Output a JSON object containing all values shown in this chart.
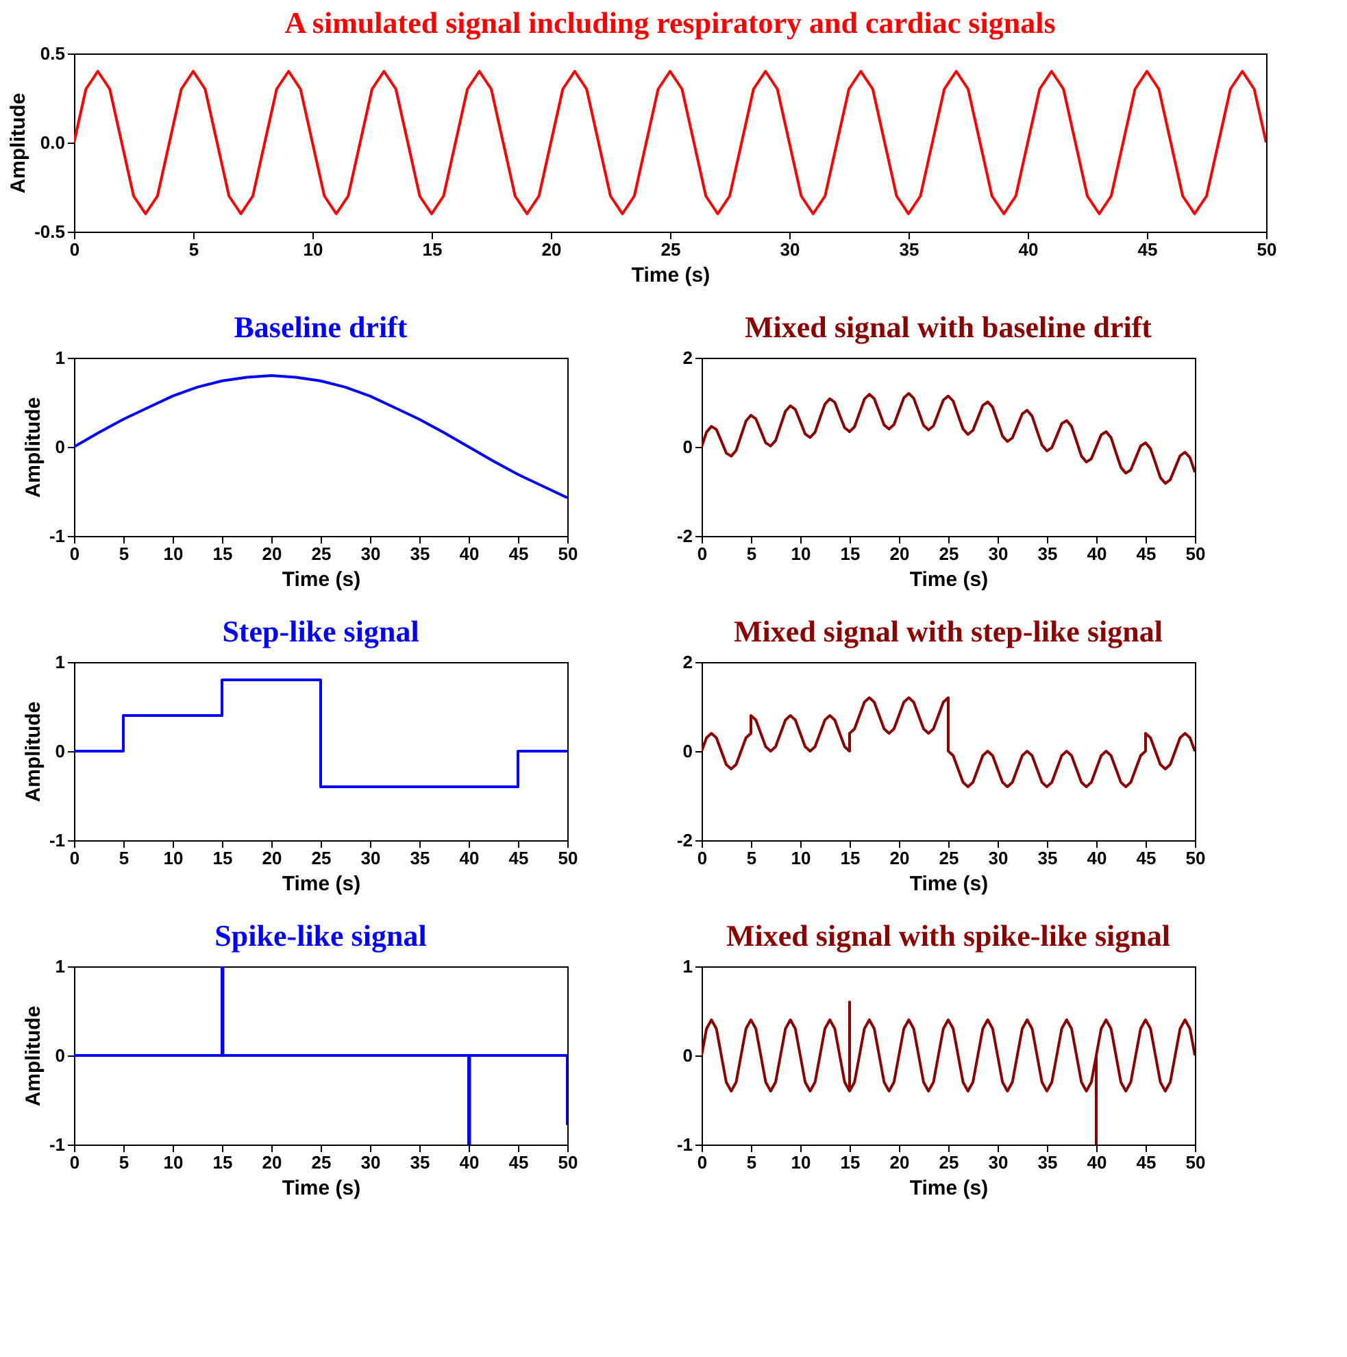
{
  "chart_data": [
    {
      "type": "line",
      "title": "A simulated signal including respiratory and cardiac signals",
      "xlabel": "Time (s)",
      "ylabel": "Amplitude",
      "xlim": [
        0,
        50
      ],
      "ylim": [
        -0.5,
        0.5
      ],
      "xticks": [
        0,
        5,
        10,
        15,
        20,
        25,
        30,
        35,
        40,
        45,
        50
      ],
      "yticks": [
        -0.5,
        {
          "value": 0,
          "label": "0.0"
        },
        0.5
      ],
      "x": [
        0,
        0.5,
        1,
        1.5,
        2,
        2.5,
        3,
        3.5,
        4,
        4.5,
        5,
        5.5,
        6,
        6.5,
        7,
        7.5,
        8,
        8.5,
        9,
        9.5,
        10,
        10.5,
        11,
        11.5,
        12,
        12.5,
        13,
        13.5,
        14,
        14.5,
        15,
        15.5,
        16,
        16.5,
        17,
        17.5,
        18,
        18.5,
        19,
        19.5,
        20,
        20.5,
        21,
        21.5,
        22,
        22.5,
        23,
        23.5,
        24,
        24.5,
        25,
        25.5,
        26,
        26.5,
        27,
        27.5,
        28,
        28.5,
        29,
        29.5,
        30,
        30.5,
        31,
        31.5,
        32,
        32.5,
        33,
        33.5,
        34,
        34.5,
        35,
        35.5,
        36,
        36.5,
        37,
        37.5,
        38,
        38.5,
        39,
        39.5,
        40,
        40.5,
        41,
        41.5,
        42,
        42.5,
        43,
        43.5,
        44,
        44.5,
        45,
        45.5,
        46,
        46.5,
        47,
        47.5,
        48,
        48.5,
        49,
        49.5,
        50
      ],
      "series": [
        {
          "color": "#ff0000",
          "values": [
            0,
            0.3,
            0.4,
            0.3,
            0,
            -0.3,
            -0.4,
            -0.3,
            0,
            0.3,
            0.4,
            0.3,
            0,
            -0.3,
            -0.4,
            -0.3,
            0,
            0.3,
            0.4,
            0.3,
            0,
            -0.3,
            -0.4,
            -0.3,
            0,
            0.3,
            0.4,
            0.3,
            0,
            -0.3,
            -0.4,
            -0.3,
            0,
            0.3,
            0.4,
            0.3,
            0,
            -0.3,
            -0.4,
            -0.3,
            0,
            0.3,
            0.4,
            0.3,
            0,
            -0.3,
            -0.4,
            -0.3,
            0,
            0.3,
            0.4,
            0.3,
            0,
            -0.3,
            -0.4,
            -0.3,
            0,
            0.3,
            0.4,
            0.3,
            0,
            -0.3,
            -0.4,
            -0.3,
            0,
            0.3,
            0.4,
            0.3,
            0,
            -0.3,
            -0.4,
            -0.3,
            0,
            0.3,
            0.4,
            0.3,
            0,
            -0.3,
            -0.4,
            -0.3,
            0,
            0.3,
            0.4,
            0.3,
            0,
            -0.3,
            -0.4,
            -0.3,
            0,
            0.3,
            0.4,
            0.3,
            0,
            -0.3,
            -0.4,
            -0.3,
            0,
            0.3,
            0.4,
            0.3,
            0
          ]
        }
      ]
    },
    {
      "type": "line",
      "title": "Baseline drift",
      "xlabel": "Time (s)",
      "ylabel": "Amplitude",
      "xlim": [
        0,
        50
      ],
      "ylim": [
        -1,
        1
      ],
      "xticks": [
        0,
        5,
        10,
        15,
        20,
        25,
        30,
        35,
        40,
        45,
        50
      ],
      "yticks": [
        -1,
        0,
        1
      ],
      "x": [
        0,
        2.5,
        5,
        7.5,
        10,
        12.5,
        15,
        17.5,
        20,
        22.5,
        25,
        27.5,
        30,
        32.5,
        35,
        37.5,
        40,
        42.5,
        45,
        47.5,
        50
      ],
      "series": [
        {
          "color": "#0000ff",
          "values": [
            0,
            0.16,
            0.31,
            0.44,
            0.57,
            0.67,
            0.74,
            0.78,
            0.8,
            0.78,
            0.74,
            0.67,
            0.57,
            0.44,
            0.31,
            0.16,
            0,
            -0.16,
            -0.31,
            -0.44,
            -0.57
          ]
        }
      ]
    },
    {
      "type": "line",
      "title": "Mixed signal with baseline drift",
      "xlabel": "Time (s)",
      "xlim": [
        0,
        50
      ],
      "ylim": [
        -2,
        2
      ],
      "xticks": [
        0,
        5,
        10,
        15,
        20,
        25,
        30,
        35,
        40,
        45,
        50
      ],
      "yticks": [
        -2,
        0,
        2
      ],
      "x": [
        0,
        0.5,
        1,
        1.5,
        2,
        2.5,
        3,
        3.5,
        4,
        4.5,
        5,
        5.5,
        6,
        6.5,
        7,
        7.5,
        8,
        8.5,
        9,
        9.5,
        10,
        10.5,
        11,
        11.5,
        12,
        12.5,
        13,
        13.5,
        14,
        14.5,
        15,
        15.5,
        16,
        16.5,
        17,
        17.5,
        18,
        18.5,
        19,
        19.5,
        20,
        20.5,
        21,
        21.5,
        22,
        22.5,
        23,
        23.5,
        24,
        24.5,
        25,
        25.5,
        26,
        26.5,
        27,
        27.5,
        28,
        28.5,
        29,
        29.5,
        30,
        30.5,
        31,
        31.5,
        32,
        32.5,
        33,
        33.5,
        34,
        34.5,
        35,
        35.5,
        36,
        36.5,
        37,
        37.5,
        38,
        38.5,
        39,
        39.5,
        40,
        40.5,
        41,
        41.5,
        42,
        42.5,
        43,
        43.5,
        44,
        44.5,
        45,
        45.5,
        46,
        46.5,
        47,
        47.5,
        48,
        48.5,
        49,
        49.5,
        50
      ],
      "series": [
        {
          "color": "#8b0000",
          "values": [
            0,
            0.33,
            0.46,
            0.39,
            0.13,
            -0.14,
            -0.21,
            -0.08,
            0.25,
            0.58,
            0.71,
            0.63,
            0.36,
            0.09,
            0.02,
            0.14,
            0.47,
            0.8,
            0.92,
            0.84,
            0.57,
            0.29,
            0.21,
            0.33,
            0.65,
            0.96,
            1.08,
            1.0,
            0.71,
            0.43,
            0.34,
            0.45,
            0.76,
            1.07,
            1.18,
            1.08,
            0.79,
            0.49,
            0.4,
            0.5,
            0.8,
            1.1,
            1.2,
            1.09,
            0.79,
            0.48,
            0.38,
            0.47,
            0.76,
            1.05,
            1.14,
            1.03,
            0.71,
            0.4,
            0.28,
            0.37,
            0.65,
            0.93,
            1.01,
            0.89,
            0.57,
            0.24,
            0.12,
            0.2,
            0.47,
            0.74,
            0.82,
            0.69,
            0.36,
            0.04,
            -0.09,
            -0.02,
            0.25,
            0.52,
            0.59,
            0.46,
            0.13,
            -0.21,
            -0.34,
            -0.27,
            0,
            0.27,
            0.34,
            0.21,
            -0.13,
            -0.46,
            -0.59,
            -0.52,
            -0.25,
            0.02,
            0.09,
            -0.04,
            -0.36,
            -0.69,
            -0.82,
            -0.74,
            -0.47,
            -0.2,
            -0.12,
            -0.24,
            -0.57
          ]
        }
      ]
    },
    {
      "type": "line",
      "title": "Step-like signal",
      "xlabel": "Time (s)",
      "ylabel": "Amplitude",
      "xlim": [
        0,
        50
      ],
      "ylim": [
        -1,
        1
      ],
      "xticks": [
        0,
        5,
        10,
        15,
        20,
        25,
        30,
        35,
        40,
        45,
        50
      ],
      "yticks": [
        -1,
        0,
        1
      ],
      "x": [
        0,
        5,
        5,
        15,
        15,
        25,
        25,
        45,
        45,
        50
      ],
      "series": [
        {
          "color": "#0000ff",
          "values": [
            0,
            0,
            0.4,
            0.4,
            0.8,
            0.8,
            -0.4,
            -0.4,
            0,
            0
          ]
        }
      ]
    },
    {
      "type": "line",
      "title": "Mixed signal with step-like signal",
      "xlabel": "Time (s)",
      "xlim": [
        0,
        50
      ],
      "ylim": [
        -2,
        2
      ],
      "xticks": [
        0,
        5,
        10,
        15,
        20,
        25,
        30,
        35,
        40,
        45,
        50
      ],
      "yticks": [
        -2,
        0,
        2
      ],
      "x": [
        0,
        0.5,
        1,
        1.5,
        2,
        2.5,
        3,
        3.5,
        4,
        4.5,
        5,
        5,
        5.5,
        6,
        6.5,
        7,
        7.5,
        8,
        8.5,
        9,
        9.5,
        10,
        10.5,
        11,
        11.5,
        12,
        12.5,
        13,
        13.5,
        14,
        14.5,
        15,
        15,
        15.5,
        16,
        16.5,
        17,
        17.5,
        18,
        18.5,
        19,
        19.5,
        20,
        20.5,
        21,
        21.5,
        22,
        22.5,
        23,
        23.5,
        24,
        24.5,
        25,
        25,
        25.5,
        26,
        26.5,
        27,
        27.5,
        28,
        28.5,
        29,
        29.5,
        30,
        30.5,
        31,
        31.5,
        32,
        32.5,
        33,
        33.5,
        34,
        34.5,
        35,
        35.5,
        36,
        36.5,
        37,
        37.5,
        38,
        38.5,
        39,
        39.5,
        40,
        40.5,
        41,
        41.5,
        42,
        42.5,
        43,
        43.5,
        44,
        44.5,
        45,
        45,
        45.5,
        46,
        46.5,
        47,
        47.5,
        48,
        48.5,
        49,
        49.5,
        50
      ],
      "series": [
        {
          "color": "#8b0000",
          "values": [
            0,
            0.3,
            0.4,
            0.3,
            0,
            -0.3,
            -0.4,
            -0.3,
            0,
            0.3,
            0.4,
            0.8,
            0.7,
            0.4,
            0.1,
            0,
            0.1,
            0.4,
            0.7,
            0.8,
            0.7,
            0.4,
            0.1,
            0,
            0.1,
            0.4,
            0.7,
            0.8,
            0.7,
            0.4,
            0.1,
            0,
            0.4,
            0.5,
            0.8,
            1.1,
            1.2,
            1.1,
            0.8,
            0.5,
            0.4,
            0.5,
            0.8,
            1.1,
            1.2,
            1.1,
            0.8,
            0.5,
            0.4,
            0.5,
            0.8,
            1.1,
            1.2,
            0,
            -0.1,
            -0.4,
            -0.7,
            -0.8,
            -0.7,
            -0.4,
            -0.1,
            0,
            -0.1,
            -0.4,
            -0.7,
            -0.8,
            -0.7,
            -0.4,
            -0.1,
            0,
            -0.1,
            -0.4,
            -0.7,
            -0.8,
            -0.7,
            -0.4,
            -0.1,
            0,
            -0.1,
            -0.4,
            -0.7,
            -0.8,
            -0.7,
            -0.4,
            -0.1,
            0,
            -0.1,
            -0.4,
            -0.7,
            -0.8,
            -0.7,
            -0.4,
            -0.1,
            0,
            0.4,
            0.3,
            0,
            -0.3,
            -0.4,
            -0.3,
            0,
            0.3,
            0.4,
            0.3,
            0
          ]
        }
      ]
    },
    {
      "type": "line",
      "title": "Spike-like signal",
      "xlabel": "Time (s)",
      "ylabel": "Amplitude",
      "xlim": [
        0,
        50
      ],
      "ylim": [
        -1,
        1
      ],
      "xticks": [
        0,
        5,
        10,
        15,
        20,
        25,
        30,
        35,
        40,
        45,
        50
      ],
      "yticks": [
        -1,
        0,
        1
      ],
      "x": [
        0,
        15,
        15,
        15.1,
        15.1,
        40,
        40,
        40.1,
        40.1,
        50,
        50
      ],
      "series": [
        {
          "color": "#0000ff",
          "values": [
            0,
            0,
            1,
            1,
            0,
            0,
            -1,
            -1,
            0,
            0,
            -0.78
          ]
        }
      ]
    },
    {
      "type": "line",
      "title": "Mixed signal with spike-like signal",
      "xlabel": "Time (s)",
      "xlim": [
        0,
        50
      ],
      "ylim": [
        -1,
        1
      ],
      "xticks": [
        0,
        5,
        10,
        15,
        20,
        25,
        30,
        35,
        40,
        45,
        50
      ],
      "yticks": [
        -1,
        0,
        1
      ],
      "x": [
        0,
        0.5,
        1,
        1.5,
        2,
        2.5,
        3,
        3.5,
        4,
        4.5,
        5,
        5.5,
        6,
        6.5,
        7,
        7.5,
        8,
        8.5,
        9,
        9.5,
        10,
        10.5,
        11,
        11.5,
        12,
        12.5,
        13,
        13.5,
        14,
        14.5,
        15,
        15,
        15,
        15.5,
        16,
        16.5,
        17,
        17.5,
        18,
        18.5,
        19,
        19.5,
        20,
        20.5,
        21,
        21.5,
        22,
        22.5,
        23,
        23.5,
        24,
        24.5,
        25,
        25.5,
        26,
        26.5,
        27,
        27.5,
        28,
        28.5,
        29,
        29.5,
        30,
        30.5,
        31,
        31.5,
        32,
        32.5,
        33,
        33.5,
        34,
        34.5,
        35,
        35.5,
        36,
        36.5,
        37,
        37.5,
        38,
        38.5,
        39,
        39.5,
        40,
        40,
        40,
        40.5,
        41,
        41.5,
        42,
        42.5,
        43,
        43.5,
        44,
        44.5,
        45,
        45.5,
        46,
        46.5,
        47,
        47.5,
        48,
        48.5,
        49,
        49.5,
        50
      ],
      "series": [
        {
          "color": "#8b0000",
          "values": [
            0,
            0.3,
            0.4,
            0.3,
            0,
            -0.3,
            -0.4,
            -0.3,
            0,
            0.3,
            0.4,
            0.3,
            0,
            -0.3,
            -0.4,
            -0.3,
            0,
            0.3,
            0.4,
            0.3,
            0,
            -0.3,
            -0.4,
            -0.3,
            0,
            0.3,
            0.4,
            0.3,
            0,
            -0.3,
            -0.4,
            0.6,
            -0.4,
            -0.3,
            0,
            0.3,
            0.4,
            0.3,
            0,
            -0.3,
            -0.4,
            -0.3,
            0,
            0.3,
            0.4,
            0.3,
            0,
            -0.3,
            -0.4,
            -0.3,
            0,
            0.3,
            0.4,
            0.3,
            0,
            -0.3,
            -0.4,
            -0.3,
            0,
            0.3,
            0.4,
            0.3,
            0,
            -0.3,
            -0.4,
            -0.3,
            0,
            0.3,
            0.4,
            0.3,
            0,
            -0.3,
            -0.4,
            -0.3,
            0,
            0.3,
            0.4,
            0.3,
            0,
            -0.3,
            -0.4,
            -0.3,
            0,
            -1,
            0,
            0.3,
            0.4,
            0.3,
            0,
            -0.3,
            -0.4,
            -0.3,
            0,
            0.3,
            0.4,
            0.3,
            0,
            -0.3,
            -0.4,
            -0.3,
            0,
            0.3,
            0.4,
            0.3,
            0
          ]
        }
      ]
    }
  ]
}
